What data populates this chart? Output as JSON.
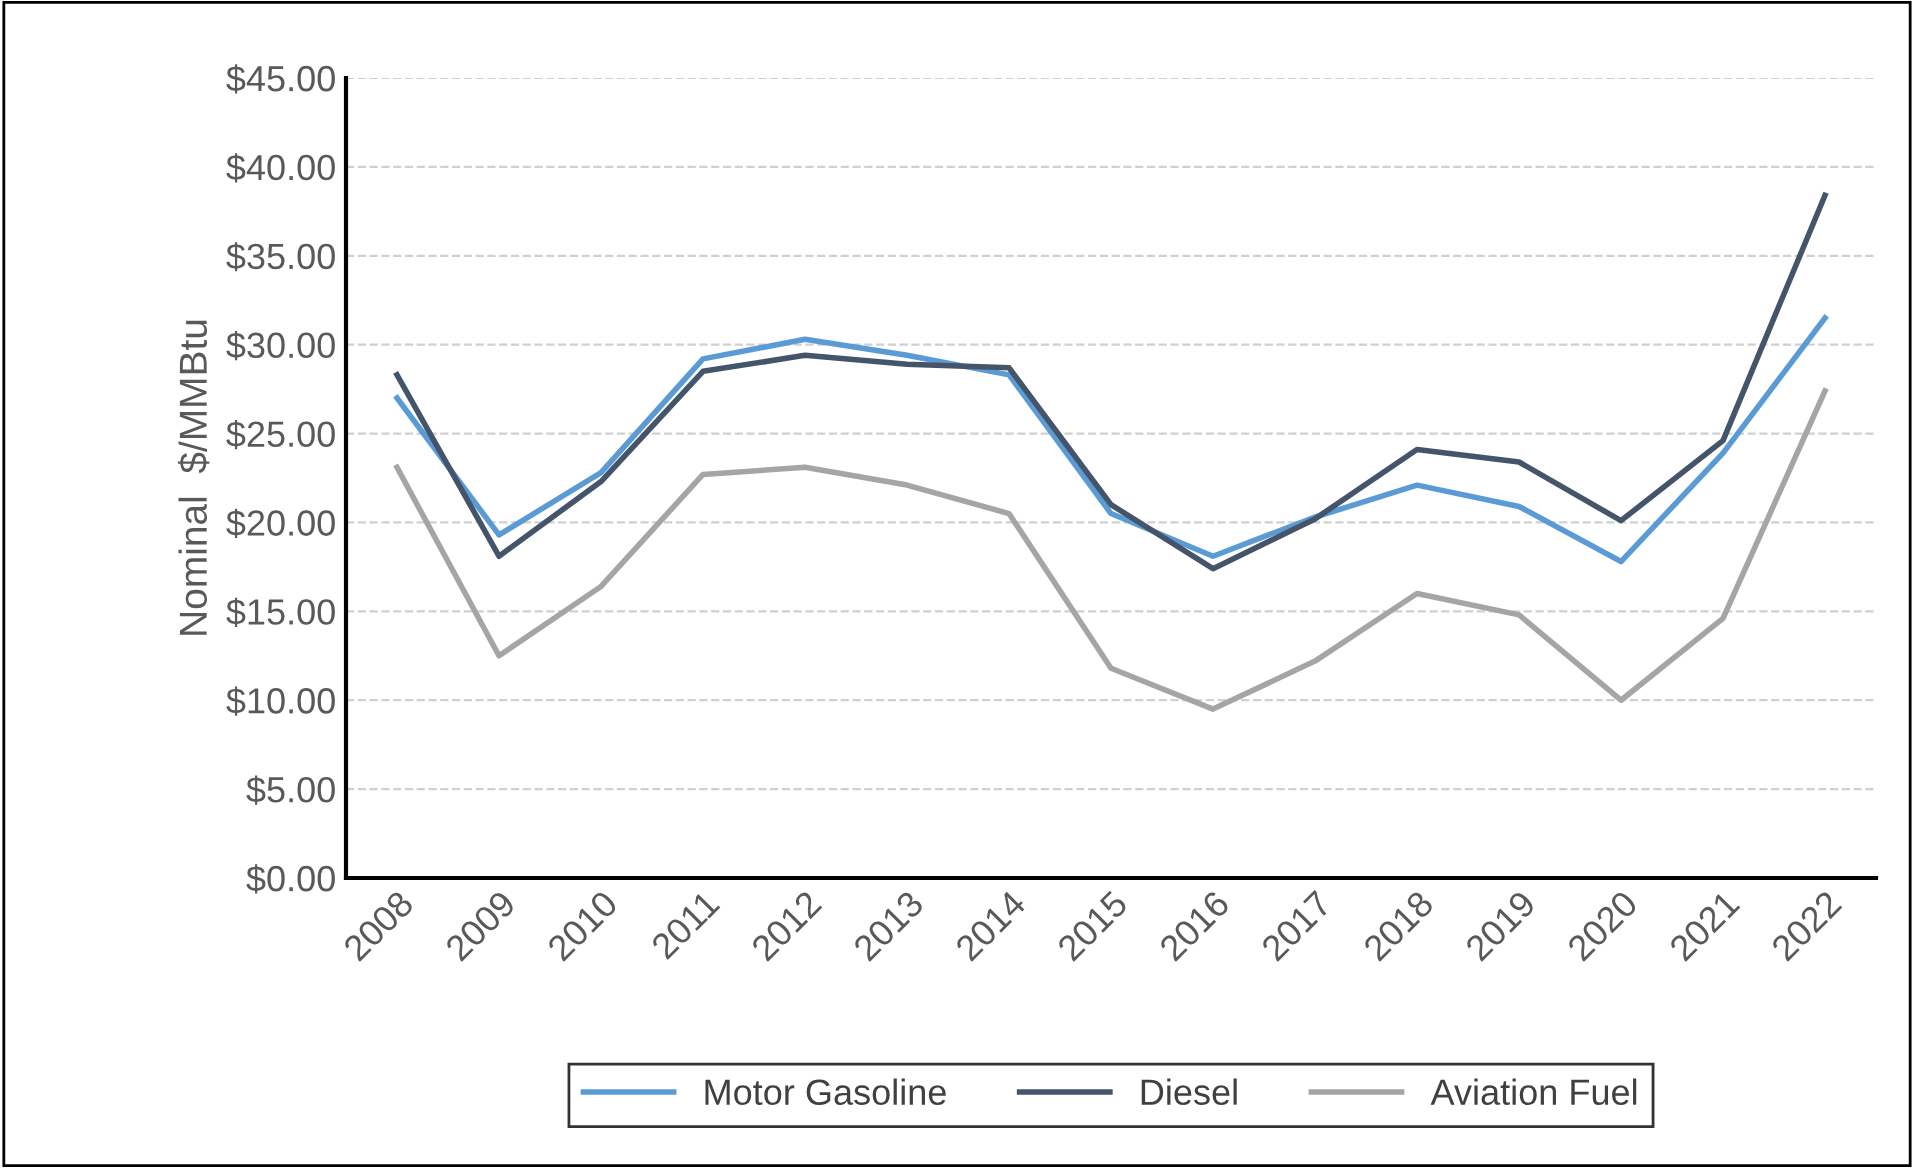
{
  "chart_data": {
    "type": "line",
    "ylabel": "Nominal  $/MMBtu",
    "categories": [
      "2008",
      "2009",
      "2010",
      "2011",
      "2012",
      "2013",
      "2014",
      "2015",
      "2016",
      "2017",
      "2018",
      "2019",
      "2020",
      "2021",
      "2022"
    ],
    "series": [
      {
        "name": "Motor Gasoline",
        "color": "#5b9bd5",
        "values": [
          27.0,
          19.3,
          22.8,
          29.2,
          30.3,
          29.4,
          28.3,
          20.5,
          18.1,
          20.3,
          22.1,
          20.9,
          17.8,
          23.9,
          31.5
        ]
      },
      {
        "name": "Diesel",
        "color": "#44546a",
        "values": [
          28.3,
          18.1,
          22.3,
          28.5,
          29.4,
          28.9,
          28.7,
          21.0,
          17.4,
          20.2,
          24.1,
          23.4,
          20.1,
          24.6,
          38.4
        ]
      },
      {
        "name": "Aviation Fuel",
        "color": "#a5a5a5",
        "values": [
          23.1,
          12.5,
          16.4,
          22.7,
          23.1,
          22.1,
          20.5,
          11.8,
          9.5,
          12.2,
          16.0,
          14.8,
          10.0,
          14.6,
          27.4
        ]
      }
    ],
    "ylim": [
      0,
      45
    ],
    "yticks": [
      {
        "value": 0,
        "label": "$0.00"
      },
      {
        "value": 5,
        "label": "$5.00"
      },
      {
        "value": 10,
        "label": "$10.00"
      },
      {
        "value": 15,
        "label": "$15.00"
      },
      {
        "value": 20,
        "label": "$20.00"
      },
      {
        "value": 25,
        "label": "$25.00"
      },
      {
        "value": 30,
        "label": "$30.00"
      },
      {
        "value": 35,
        "label": "$35.00"
      },
      {
        "value": 40,
        "label": "$40.00"
      },
      {
        "value": 45,
        "label": "$45.00"
      }
    ],
    "grid": "y",
    "legend": "bottom",
    "marker": "none",
    "line_style": "solid"
  }
}
